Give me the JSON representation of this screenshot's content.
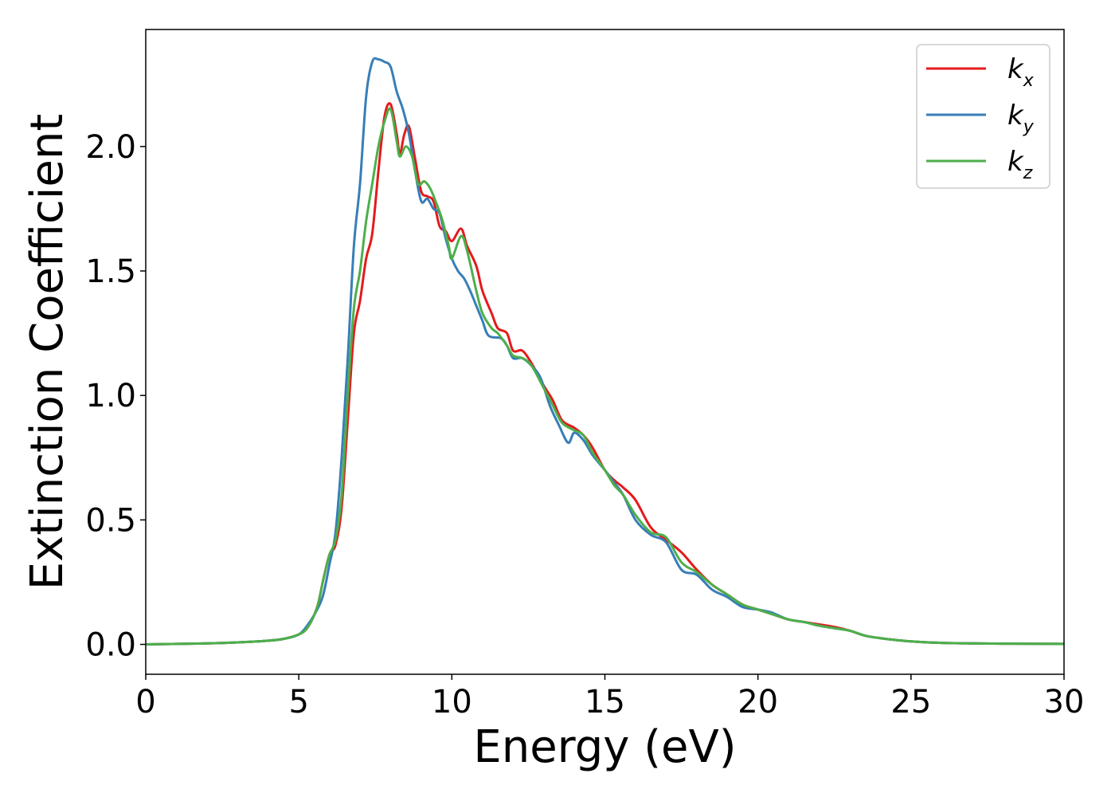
{
  "chart_data": {
    "type": "line",
    "xlabel": "Energy (eV)",
    "ylabel": "Extinction Coefficient",
    "xlim": [
      0,
      30
    ],
    "ylim": [
      -0.12,
      2.47
    ],
    "xticks": [
      0,
      5,
      10,
      15,
      20,
      25,
      30
    ],
    "xtick_labels": [
      "0",
      "5",
      "10",
      "15",
      "20",
      "25",
      "30"
    ],
    "yticks": [
      0.0,
      0.5,
      1.0,
      1.5,
      2.0
    ],
    "ytick_labels": [
      "0.0",
      "0.5",
      "1.0",
      "1.5",
      "2.0"
    ],
    "grid": false,
    "legend_position": "top-right",
    "series": [
      {
        "name": "k_x",
        "legend_main": "k",
        "legend_sub": "x",
        "color": "#e41a1c",
        "points": [
          [
            0,
            0.0
          ],
          [
            2,
            0.004
          ],
          [
            3,
            0.008
          ],
          [
            4,
            0.015
          ],
          [
            4.5,
            0.022
          ],
          [
            5,
            0.04
          ],
          [
            5.3,
            0.07
          ],
          [
            5.6,
            0.15
          ],
          [
            5.8,
            0.26
          ],
          [
            6.0,
            0.36
          ],
          [
            6.2,
            0.4
          ],
          [
            6.4,
            0.55
          ],
          [
            6.6,
            0.9
          ],
          [
            6.8,
            1.25
          ],
          [
            7.0,
            1.38
          ],
          [
            7.2,
            1.55
          ],
          [
            7.4,
            1.65
          ],
          [
            7.6,
            1.9
          ],
          [
            7.8,
            2.12
          ],
          [
            8.0,
            2.17
          ],
          [
            8.2,
            2.05
          ],
          [
            8.3,
            1.97
          ],
          [
            8.45,
            2.05
          ],
          [
            8.6,
            2.08
          ],
          [
            8.8,
            1.95
          ],
          [
            9.0,
            1.82
          ],
          [
            9.2,
            1.8
          ],
          [
            9.4,
            1.78
          ],
          [
            9.6,
            1.68
          ],
          [
            9.8,
            1.66
          ],
          [
            10.0,
            1.62
          ],
          [
            10.3,
            1.67
          ],
          [
            10.5,
            1.6
          ],
          [
            10.8,
            1.52
          ],
          [
            11.0,
            1.42
          ],
          [
            11.3,
            1.33
          ],
          [
            11.5,
            1.27
          ],
          [
            11.8,
            1.25
          ],
          [
            12.0,
            1.18
          ],
          [
            12.3,
            1.18
          ],
          [
            12.6,
            1.13
          ],
          [
            13.0,
            1.04
          ],
          [
            13.3,
            0.98
          ],
          [
            13.6,
            0.9
          ],
          [
            14.0,
            0.87
          ],
          [
            14.3,
            0.84
          ],
          [
            14.6,
            0.79
          ],
          [
            15.0,
            0.7
          ],
          [
            15.3,
            0.66
          ],
          [
            15.6,
            0.63
          ],
          [
            16.0,
            0.58
          ],
          [
            16.5,
            0.47
          ],
          [
            17.0,
            0.42
          ],
          [
            17.5,
            0.37
          ],
          [
            18.0,
            0.3
          ],
          [
            18.5,
            0.24
          ],
          [
            19.0,
            0.2
          ],
          [
            19.5,
            0.16
          ],
          [
            20.0,
            0.14
          ],
          [
            20.5,
            0.12
          ],
          [
            21.0,
            0.1
          ],
          [
            21.5,
            0.09
          ],
          [
            22.0,
            0.08
          ],
          [
            22.5,
            0.07
          ],
          [
            23.0,
            0.055
          ],
          [
            23.5,
            0.035
          ],
          [
            24.0,
            0.025
          ],
          [
            25.0,
            0.012
          ],
          [
            26.0,
            0.006
          ],
          [
            27.0,
            0.004
          ],
          [
            28.0,
            0.003
          ],
          [
            30.0,
            0.002
          ]
        ]
      },
      {
        "name": "k_y",
        "legend_main": "k",
        "legend_sub": "y",
        "color": "#377eb8",
        "points": [
          [
            0,
            0.0
          ],
          [
            2,
            0.004
          ],
          [
            3,
            0.008
          ],
          [
            4,
            0.015
          ],
          [
            4.5,
            0.022
          ],
          [
            5,
            0.04
          ],
          [
            5.3,
            0.08
          ],
          [
            5.6,
            0.14
          ],
          [
            5.8,
            0.2
          ],
          [
            6.0,
            0.32
          ],
          [
            6.2,
            0.45
          ],
          [
            6.4,
            0.75
          ],
          [
            6.6,
            1.15
          ],
          [
            6.8,
            1.6
          ],
          [
            7.0,
            1.85
          ],
          [
            7.2,
            2.2
          ],
          [
            7.4,
            2.34
          ],
          [
            7.6,
            2.35
          ],
          [
            7.8,
            2.34
          ],
          [
            8.0,
            2.32
          ],
          [
            8.2,
            2.22
          ],
          [
            8.4,
            2.15
          ],
          [
            8.6,
            2.05
          ],
          [
            8.8,
            1.9
          ],
          [
            9.0,
            1.78
          ],
          [
            9.2,
            1.79
          ],
          [
            9.4,
            1.75
          ],
          [
            9.6,
            1.73
          ],
          [
            9.8,
            1.63
          ],
          [
            10.0,
            1.55
          ],
          [
            10.2,
            1.5
          ],
          [
            10.4,
            1.47
          ],
          [
            10.6,
            1.42
          ],
          [
            10.8,
            1.36
          ],
          [
            11.0,
            1.3
          ],
          [
            11.2,
            1.24
          ],
          [
            11.6,
            1.23
          ],
          [
            11.8,
            1.2
          ],
          [
            12.0,
            1.15
          ],
          [
            12.3,
            1.15
          ],
          [
            12.6,
            1.12
          ],
          [
            12.9,
            1.07
          ],
          [
            13.2,
            0.96
          ],
          [
            13.5,
            0.88
          ],
          [
            13.8,
            0.81
          ],
          [
            14.0,
            0.85
          ],
          [
            14.3,
            0.82
          ],
          [
            14.6,
            0.76
          ],
          [
            15.0,
            0.7
          ],
          [
            15.3,
            0.65
          ],
          [
            15.6,
            0.6
          ],
          [
            16.0,
            0.5
          ],
          [
            16.5,
            0.44
          ],
          [
            17.0,
            0.41
          ],
          [
            17.5,
            0.3
          ],
          [
            18.0,
            0.28
          ],
          [
            18.5,
            0.22
          ],
          [
            19.0,
            0.19
          ],
          [
            19.5,
            0.15
          ],
          [
            20.0,
            0.14
          ],
          [
            20.4,
            0.13
          ],
          [
            20.6,
            0.12
          ],
          [
            21.0,
            0.1
          ],
          [
            21.5,
            0.09
          ],
          [
            22.0,
            0.075
          ],
          [
            22.5,
            0.065
          ],
          [
            23.0,
            0.055
          ],
          [
            23.5,
            0.035
          ],
          [
            24.0,
            0.025
          ],
          [
            25.0,
            0.012
          ],
          [
            26.0,
            0.006
          ],
          [
            27.0,
            0.004
          ],
          [
            28.0,
            0.003
          ],
          [
            30.0,
            0.002
          ]
        ]
      },
      {
        "name": "k_z",
        "legend_main": "k",
        "legend_sub": "z",
        "color": "#4daf4a",
        "points": [
          [
            0,
            0.0
          ],
          [
            2,
            0.004
          ],
          [
            3,
            0.008
          ],
          [
            4,
            0.015
          ],
          [
            4.5,
            0.022
          ],
          [
            5,
            0.04
          ],
          [
            5.3,
            0.07
          ],
          [
            5.6,
            0.15
          ],
          [
            5.8,
            0.26
          ],
          [
            6.0,
            0.36
          ],
          [
            6.2,
            0.42
          ],
          [
            6.4,
            0.6
          ],
          [
            6.6,
            1.0
          ],
          [
            6.8,
            1.35
          ],
          [
            7.0,
            1.5
          ],
          [
            7.2,
            1.7
          ],
          [
            7.4,
            1.85
          ],
          [
            7.6,
            2.0
          ],
          [
            7.8,
            2.1
          ],
          [
            8.0,
            2.15
          ],
          [
            8.2,
            2.02
          ],
          [
            8.3,
            1.96
          ],
          [
            8.5,
            2.0
          ],
          [
            8.7,
            1.96
          ],
          [
            8.9,
            1.85
          ],
          [
            9.1,
            1.86
          ],
          [
            9.3,
            1.83
          ],
          [
            9.5,
            1.77
          ],
          [
            9.7,
            1.7
          ],
          [
            9.9,
            1.6
          ],
          [
            10.0,
            1.55
          ],
          [
            10.3,
            1.64
          ],
          [
            10.5,
            1.58
          ],
          [
            10.8,
            1.42
          ],
          [
            11.0,
            1.33
          ],
          [
            11.3,
            1.27
          ],
          [
            11.5,
            1.25
          ],
          [
            11.8,
            1.2
          ],
          [
            12.0,
            1.16
          ],
          [
            12.3,
            1.15
          ],
          [
            12.6,
            1.12
          ],
          [
            13.0,
            1.03
          ],
          [
            13.3,
            0.96
          ],
          [
            13.6,
            0.89
          ],
          [
            14.0,
            0.86
          ],
          [
            14.3,
            0.84
          ],
          [
            14.6,
            0.77
          ],
          [
            15.0,
            0.7
          ],
          [
            15.3,
            0.64
          ],
          [
            15.6,
            0.6
          ],
          [
            16.0,
            0.52
          ],
          [
            16.5,
            0.45
          ],
          [
            17.0,
            0.43
          ],
          [
            17.5,
            0.33
          ],
          [
            18.0,
            0.29
          ],
          [
            18.5,
            0.24
          ],
          [
            19.0,
            0.2
          ],
          [
            19.5,
            0.16
          ],
          [
            20.0,
            0.14
          ],
          [
            20.5,
            0.12
          ],
          [
            21.0,
            0.1
          ],
          [
            21.5,
            0.09
          ],
          [
            22.0,
            0.075
          ],
          [
            22.5,
            0.065
          ],
          [
            23.0,
            0.055
          ],
          [
            23.5,
            0.035
          ],
          [
            24.0,
            0.025
          ],
          [
            25.0,
            0.012
          ],
          [
            26.0,
            0.006
          ],
          [
            27.0,
            0.004
          ],
          [
            28.0,
            0.003
          ],
          [
            30.0,
            0.002
          ]
        ]
      }
    ]
  }
}
